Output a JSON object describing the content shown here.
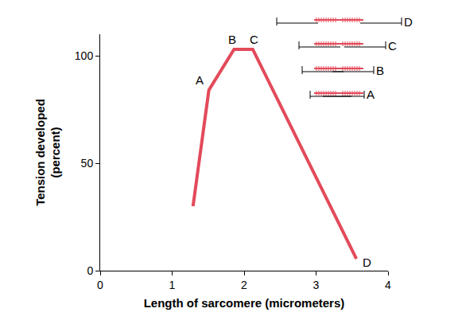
{
  "chart_data": {
    "type": "line",
    "x": [
      1.29,
      1.51,
      1.86,
      2.12,
      3.56
    ],
    "values": [
      30,
      84,
      103,
      103,
      5.5
    ],
    "point_labels": [
      null,
      "A",
      "B",
      "C",
      "D"
    ],
    "color": "#e34a5a",
    "xlabel": "Length of sarcomere (micrometers)",
    "ylabel": "Tension developed\n(percent)",
    "xlim": [
      0,
      4
    ],
    "ylim": [
      0,
      110
    ],
    "xticks": [
      0,
      1,
      2,
      3,
      4
    ],
    "yticks": [
      0,
      50,
      100
    ],
    "grid": false
  }
}
